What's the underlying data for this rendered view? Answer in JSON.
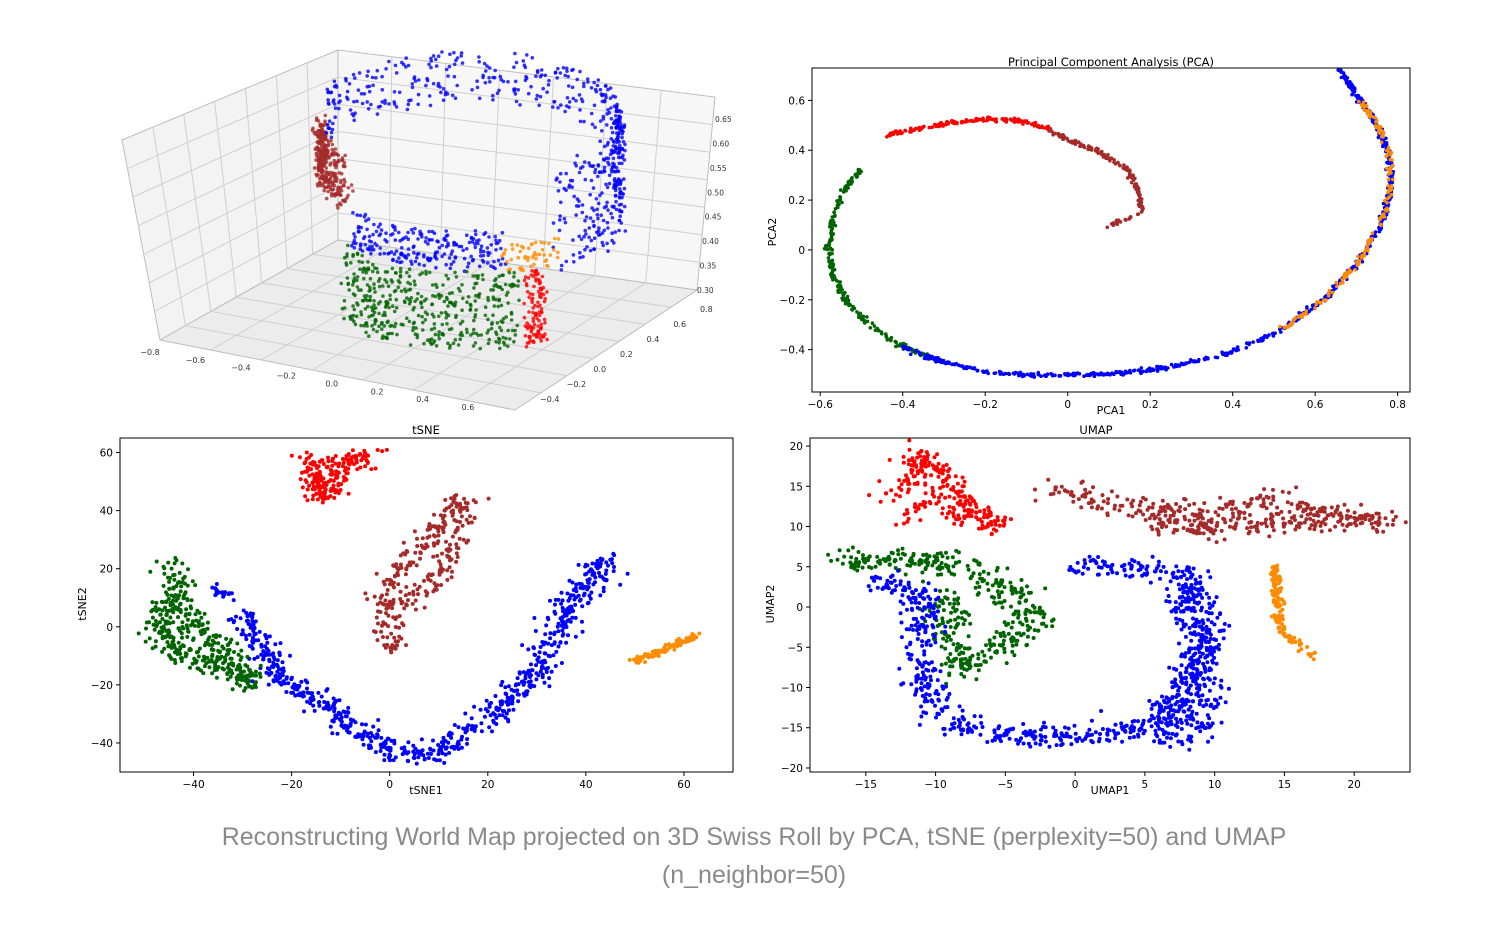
{
  "caption": {
    "line1": "Reconstructing World Map projected on 3D Swiss Roll by PCA, tSNE (perplexity=50) and UMAP",
    "line2": "(n_neighbor=50)"
  },
  "colors": {
    "red": "#ff0000",
    "brown": "#a52a2a",
    "blue": "#0000ff",
    "green": "#006400",
    "orange": "#ff8c00",
    "axis": "#000000",
    "grid3d": "#cfcfcf",
    "pane3d": "#f2f2f2"
  },
  "chart_data": [
    {
      "id": "swiss3d",
      "type": "scatter",
      "subtype": "3d",
      "title": "",
      "x_ticks": [
        "−0.8",
        "−0.6",
        "−0.4",
        "−0.2",
        "0.0",
        "0.2",
        "0.4",
        "0.6"
      ],
      "y_ticks": [
        "−0.4",
        "−0.2",
        "0.0",
        "0.2",
        "0.4",
        "0.6",
        "0.8"
      ],
      "z_ticks": [
        "0.30",
        "0.35",
        "0.40",
        "0.45",
        "0.50",
        "0.55",
        "0.60",
        "0.65"
      ],
      "xlim": [
        -0.9,
        0.7
      ],
      "ylim": [
        -0.5,
        0.9
      ],
      "zlim": [
        0.28,
        0.67
      ],
      "grid": true,
      "series": [
        {
          "color": "red",
          "arc": [
            1.05,
            1.18
          ],
          "h": [
            0.28,
            0.44
          ],
          "n": 110,
          "spread": 0.02
        },
        {
          "color": "brown",
          "arc": [
            2.55,
            3.35
          ],
          "h": [
            0.52,
            0.63
          ],
          "n": 320,
          "spread": 0.025
        },
        {
          "color": "blue",
          "arc": [
            3.45,
            6.25
          ],
          "h": [
            0.55,
            0.66
          ],
          "n": 300,
          "spread": 0.02
        },
        {
          "color": "blue",
          "arc": [
            -0.25,
            0.95
          ],
          "h": [
            0.42,
            0.65
          ],
          "n": 260,
          "spread": 0.025
        },
        {
          "color": "blue",
          "arc": [
            1.35,
            2.45
          ],
          "h": [
            0.45,
            0.53
          ],
          "n": 220,
          "spread": 0.02
        },
        {
          "color": "orange",
          "arc": [
            0.95,
            1.35
          ],
          "h": [
            0.44,
            0.5
          ],
          "n": 50,
          "spread": 0.02
        },
        {
          "color": "green",
          "arc": [
            1.25,
            2.55
          ],
          "h": [
            0.28,
            0.44
          ],
          "n": 420,
          "spread": 0.02
        }
      ]
    },
    {
      "id": "pca",
      "type": "scatter",
      "title": "Principal Component Analysis (PCA)",
      "xlabel": "PCA1",
      "ylabel": "PCA2",
      "xlim": [
        -0.62,
        0.83
      ],
      "ylim": [
        -0.57,
        0.73
      ],
      "x_ticks": [
        -0.6,
        -0.4,
        -0.2,
        0.0,
        0.2,
        0.4,
        0.6,
        0.8
      ],
      "y_ticks": [
        -0.4,
        -0.2,
        0.0,
        0.2,
        0.4,
        0.6
      ],
      "grid": false,
      "spiral": {
        "center": [
          0.07,
          -0.05
        ],
        "rx_start": 0.0,
        "samples": [
          [
            0.1,
            0.1
          ],
          [
            0.18,
            0.15
          ],
          [
            0.17,
            0.25
          ],
          [
            0.14,
            0.33
          ],
          [
            0.07,
            0.4
          ],
          [
            0.0,
            0.44
          ],
          [
            -0.05,
            0.49
          ],
          [
            -0.12,
            0.52
          ],
          [
            -0.2,
            0.525
          ],
          [
            -0.28,
            0.51
          ],
          [
            -0.37,
            0.485
          ],
          [
            -0.44,
            0.46
          ],
          [
            -0.5,
            0.32
          ],
          [
            -0.54,
            0.25
          ],
          [
            -0.57,
            0.12
          ],
          [
            -0.58,
            0.0
          ],
          [
            -0.57,
            -0.1
          ],
          [
            -0.54,
            -0.2
          ],
          [
            -0.48,
            -0.3
          ],
          [
            -0.4,
            -0.39
          ],
          [
            -0.3,
            -0.45
          ],
          [
            -0.2,
            -0.49
          ],
          [
            -0.05,
            -0.505
          ],
          [
            0.1,
            -0.5
          ],
          [
            0.25,
            -0.47
          ],
          [
            0.4,
            -0.41
          ],
          [
            0.52,
            -0.32
          ],
          [
            0.62,
            -0.2
          ],
          [
            0.7,
            -0.06
          ],
          [
            0.76,
            0.1
          ],
          [
            0.785,
            0.25
          ],
          [
            0.78,
            0.38
          ],
          [
            0.75,
            0.5
          ],
          [
            0.71,
            0.6
          ],
          [
            0.66,
            0.72
          ]
        ]
      },
      "segments": [
        {
          "color": "brown",
          "t": [
            0,
            6
          ],
          "n": 160
        },
        {
          "color": "red",
          "t": [
            6,
            11
          ],
          "n": 140
        },
        {
          "color": "green",
          "t": [
            12,
            20
          ],
          "n": 240
        },
        {
          "color": "blue",
          "t": [
            19,
            35
          ],
          "n": 650
        },
        {
          "color": "orange",
          "t": [
            26,
            33
          ],
          "n": 170
        }
      ]
    },
    {
      "id": "tsne",
      "type": "scatter",
      "title": "tSNE",
      "xlabel": "tSNE1",
      "ylabel": "tSNE2",
      "xlim": [
        -55,
        70
      ],
      "ylim": [
        -50,
        65
      ],
      "x_ticks": [
        -40,
        -20,
        0,
        20,
        40,
        60
      ],
      "y_ticks": [
        -40,
        -20,
        0,
        20,
        40,
        60
      ],
      "grid": false,
      "clusters": [
        {
          "color": "red",
          "path": [
            [
              -17,
              60
            ],
            [
              -14,
              50
            ],
            [
              -12,
              45
            ],
            [
              -10,
              52
            ],
            [
              -6,
              58
            ],
            [
              -4,
              60
            ],
            [
              -14,
              55
            ],
            [
              -16,
              45
            ]
          ],
          "n": 200,
          "w": 2.5
        },
        {
          "color": "brown",
          "path": [
            [
              1,
              -9
            ],
            [
              0,
              0
            ],
            [
              -1,
              10
            ],
            [
              3,
              22
            ],
            [
              8,
              32
            ],
            [
              12,
              38
            ],
            [
              15,
              44
            ],
            [
              14,
              30
            ],
            [
              10,
              18
            ],
            [
              6,
              12
            ],
            [
              4,
              8
            ]
          ],
          "n": 280,
          "w": 2.5
        },
        {
          "color": "blue",
          "path": [
            [
              -30,
              4
            ],
            [
              -26,
              -8
            ],
            [
              -22,
              -18
            ],
            [
              -14,
              -26
            ],
            [
              -8,
              -34
            ],
            [
              0,
              -42
            ],
            [
              8,
              -44
            ],
            [
              16,
              -36
            ],
            [
              24,
              -26
            ],
            [
              30,
              -15
            ],
            [
              34,
              -2
            ],
            [
              38,
              10
            ],
            [
              42,
              18
            ],
            [
              45,
              25
            ]
          ],
          "n": 700,
          "w": 3
        },
        {
          "color": "blue",
          "path": [
            [
              -36,
              14
            ],
            [
              -33,
              10
            ]
          ],
          "n": 20,
          "w": 1.5
        },
        {
          "color": "green",
          "path": [
            [
              -43,
              22
            ],
            [
              -44,
              12
            ],
            [
              -46,
              4
            ],
            [
              -48,
              -2
            ],
            [
              -44,
              -8
            ],
            [
              -38,
              -12
            ],
            [
              -32,
              -16
            ],
            [
              -28,
              -20
            ],
            [
              -36,
              -6
            ],
            [
              -40,
              0
            ],
            [
              -42,
              8
            ]
          ],
          "n": 380,
          "w": 3
        },
        {
          "color": "orange",
          "path": [
            [
              50,
              -12
            ],
            [
              56,
              -8
            ],
            [
              60,
              -5
            ],
            [
              63,
              -2
            ]
          ],
          "n": 110,
          "w": 0.9
        }
      ]
    },
    {
      "id": "umap",
      "type": "scatter",
      "title": "UMAP",
      "xlabel": "UMAP1",
      "ylabel": "UMAP2",
      "xlim": [
        -19,
        24
      ],
      "ylim": [
        -20.5,
        21
      ],
      "x_ticks": [
        -15,
        -10,
        -5,
        0,
        5,
        10,
        15,
        20
      ],
      "y_ticks": [
        -20,
        -15,
        -10,
        -5,
        0,
        5,
        10,
        15,
        20
      ],
      "grid": false,
      "clusters": [
        {
          "color": "red",
          "path": [
            [
              -14,
              14
            ],
            [
              -12,
              15
            ],
            [
              -11,
              17
            ],
            [
              -11,
              19
            ],
            [
              -9,
              15
            ],
            [
              -8,
              13
            ],
            [
              -7,
              12
            ],
            [
              -5,
              10
            ],
            [
              -11,
              13
            ],
            [
              -12,
              11
            ]
          ],
          "n": 260,
          "w": 1
        },
        {
          "color": "brown",
          "path": [
            [
              -2,
              15
            ],
            [
              2,
              13
            ],
            [
              6,
              12
            ],
            [
              10,
              12
            ],
            [
              14,
              13
            ],
            [
              17,
              12
            ],
            [
              20,
              11.5
            ],
            [
              22,
              10.5
            ],
            [
              6,
              10
            ],
            [
              10,
              10
            ]
          ],
          "n": 420,
          "w": 1.3
        },
        {
          "color": "green",
          "path": [
            [
              -17,
              6
            ],
            [
              -14,
              5.5
            ],
            [
              -10,
              6
            ],
            [
              -8,
              5
            ],
            [
              -6,
              3
            ],
            [
              -3,
              0
            ],
            [
              -4,
              -3
            ],
            [
              -6,
              -6
            ],
            [
              -8,
              -8
            ],
            [
              -9,
              -3
            ],
            [
              -9,
              2
            ]
          ],
          "n": 420,
          "w": 1.4
        },
        {
          "color": "blue",
          "path": [
            [
              -14,
              3
            ],
            [
              -11,
              2
            ],
            [
              -11,
              -4
            ],
            [
              -11,
              -10
            ],
            [
              -9,
              -14
            ],
            [
              -6,
              -16
            ],
            [
              -2,
              -16
            ],
            [
              2,
              -16
            ],
            [
              6,
              -14
            ],
            [
              8,
              -10
            ],
            [
              9,
              -5
            ],
            [
              8,
              0
            ],
            [
              8,
              4
            ],
            [
              4,
              5
            ],
            [
              0,
              5
            ]
          ],
          "n": 760,
          "w": 1.2
        },
        {
          "color": "blue",
          "path": [
            [
              9,
              -8
            ],
            [
              10,
              -12
            ],
            [
              9,
              -16
            ],
            [
              6,
              -17
            ],
            [
              8,
              -12
            ],
            [
              10,
              -4
            ],
            [
              9,
              3
            ]
          ],
          "n": 200,
          "w": 1
        },
        {
          "color": "orange",
          "path": [
            [
              14.3,
              5
            ],
            [
              14.5,
              2
            ],
            [
              14.5,
              -1
            ],
            [
              15,
              -3
            ],
            [
              16,
              -5
            ],
            [
              17,
              -6
            ]
          ],
          "n": 120,
          "w": 0.35
        }
      ]
    }
  ]
}
